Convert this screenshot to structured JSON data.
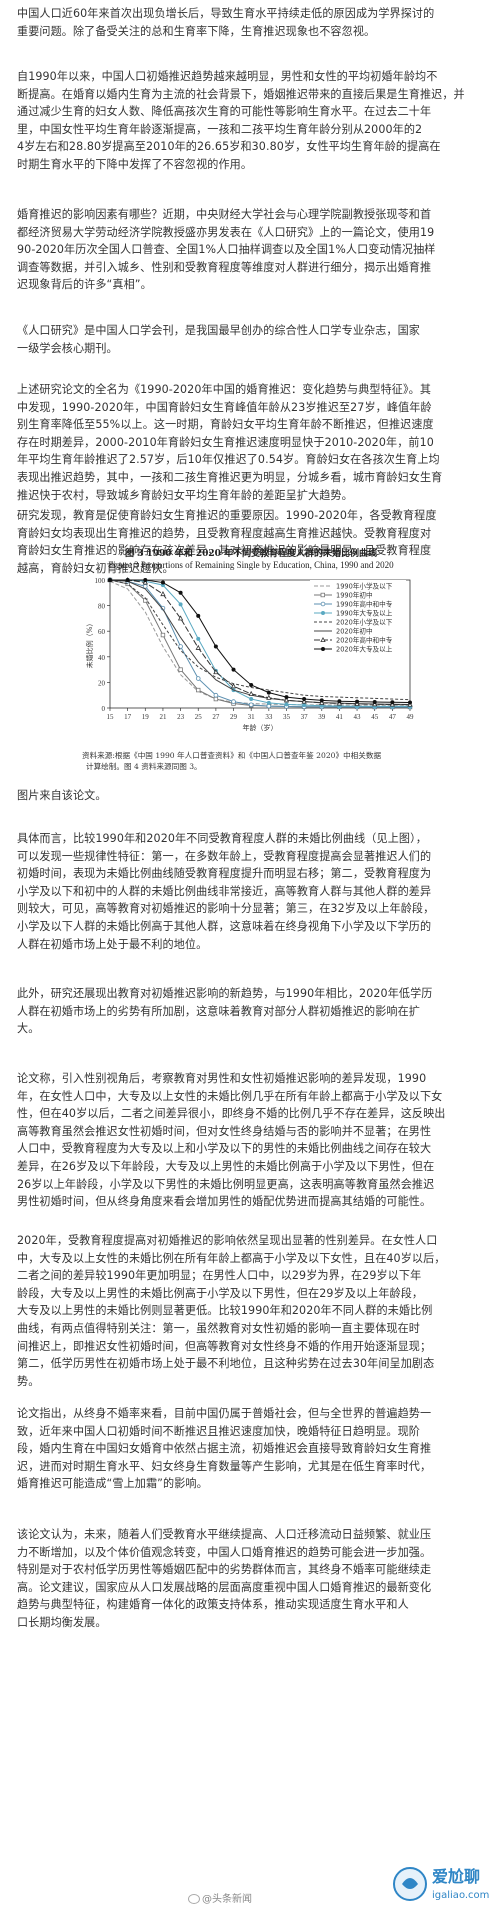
{
  "paragraphs": [
    {
      "lines": [
        "中国人口近60年来首次出现负增长后，导致生育水平持续走低的原因成为学界探讨的",
        "重要问题。除了备受关注的总和生育率下降，生育推迟现象也不容忽视。"
      ]
    },
    {
      "lines": [
        "自1990年以来，中国人口初婚推迟趋势越来越明显，男性和女性的平均初婚年龄均不",
        "断提高。在婚育以婚内生育为主流的社会背景下，婚姻推迟带来的直接后果是生育推迟，并",
        "通过减少生育的妇女人数、降低高孩次生育的可能性等影响生育水平。在过去二十年",
        "里，中国女性平均生育年龄逐渐提高，一孩和二孩平均生育年龄分别从2000年的2",
        "4岁左右和28.80岁提高至2010年的26.65岁和30.80岁，女性平均生育年龄的提高在",
        "时期生育水平的下降中发挥了不容忽视的作用。"
      ]
    },
    {
      "lines": [
        "婚育推迟的影响因素有哪些？近期，中央财经大学社会与心理学院副教授张现苓和首",
        "都经济贸易大学劳动经济学院教授盛亦男发表在《人口研究》上的一篇论文，使用19",
        "90-2020年历次全国人口普查、全国1%人口抽样调查以及全国1%人口变动情况抽样",
        "调查等数据，并引入城乡、性别和受教育程度等维度对人群进行细分，揭示出婚育推",
        "迟现象背后的许多“真相”。"
      ]
    },
    {
      "lines": [
        "《人口研究》是中国人口学会刊，是我国最早创办的综合性人口学专业杂志，国家",
        "一级学会核心期刊。"
      ]
    },
    {
      "lines": [
        "上述研究论文的全名为《1990-2020年中国的婚育推迟：变化趋势与典型特征》。其",
        "中发现，1990-2020年，中国育龄妇女生育峰值年龄从23岁推迟至27岁，峰值年龄",
        "别生育率降低至55%以上。这一时期，育龄妇女平均生育年龄不断推迟，但推迟速度",
        "存在时期差异，2000-2010年育龄妇女生育推迟速度明显快于2010-2020年，前10",
        "年平均生育年龄推迟了2.57岁，后10年仅推迟了0.54岁。育龄妇女在各孩次生育上均",
        "表现出推迟趋势，其中，一孩和二孩生育推迟更为明显，分城乡看，城市育龄妇女生育",
        "推迟快于农村，导致城乡育龄妇女平均生育年龄的差距呈扩大趋势。"
      ]
    },
    {
      "lines": [
        "研究发现，教育是促使育龄妇女生育推迟的重要原因。1990-2020年，各受教育程度",
        "育龄妇女均表现出生育推迟的趋势，且受教育程度越高生育推迟越快。受教育程度对",
        "育龄妇女生育推迟的影响存在孩次差异，其对初育推迟的影响最明显，且受教育程度",
        "越高，育龄妇女初育推迟越快。"
      ]
    },
    {
      "lines": [
        "图片来自该论文。"
      ]
    },
    {
      "lines": [
        "具体而言，比较1990年和2020年不同受教育程度人群的未婚比例曲线（见上图），",
        "可以发现一些规律性特征：第一，在多数年龄上，受教育程度提高会显著推迟人们的",
        "初婚时间，表现为未婚比例曲线随受教育程度提升而明显右移；第二，受教育程度为",
        "小学及以下和初中的人群的未婚比例曲线非常接近，高等教育人群与其他人群的差异",
        "则较大，可见，高等教育对初婚推迟的影响十分显著；第三，在32岁及以上年龄段，",
        "小学及以下人群的未婚比例高于其他人群，这意味着在终身视角下小学及以下学历的",
        "人群在初婚市场上处于最不利的地位。"
      ]
    },
    {
      "lines": [
        "此外，研究还展现出教育对初婚推迟影响的新趋势，与1990年相比，2020年低学历",
        "人群在初婚市场上的劣势有所加剧，这意味着教育对部分人群初婚推迟的影响在扩",
        "大。"
      ]
    },
    {
      "lines": [
        "论文称，引入性别视角后，考察教育对男性和女性初婚推迟影响的差异发现，1990",
        "年，在女性人口中，大专及以上女性的未婚比例几乎在所有年龄上都高于小学及以下女",
        "性，但在40岁以后，二者之间差异很小，即终身不婚的比例几乎不存在差异，这反映出",
        "高等教育虽然会推迟女性初婚时间，但对女性终身结婚与否的影响并不显著；在男性",
        "人口中，受教育程度为大专及以上和小学及以下的男性的未婚比例曲线之间存在较大",
        "差异，在26岁及以下年龄段，大专及以上男性的未婚比例高于小学及以下男性，但在",
        "26岁以上年龄段，小学及以下男性的未婚比例明显更高，这表明高等教育虽然会推迟",
        "男性初婚时间，但从终身角度来看会增加男性的婚配优势进而提高其结婚的可能性。"
      ]
    },
    {
      "lines": [
        "2020年，受教育程度提高对初婚推迟的影响依然呈现出显著的性别差异。在女性人口",
        "中，大专及以上女性的未婚比例在所有年龄上都高于小学及以下女性，且在40岁以后，",
        "二者之间的差异较1990年更加明显；在男性人口中，以29岁为界，在29岁以下年",
        "龄段，大专及以上男性的未婚比例高于小学及以下男性，但在29岁及以上年龄段，",
        "大专及以上男性的未婚比例则显著更低。比较1990年和2020年不同人群的未婚比例",
        "曲线，有两点值得特别关注：第一，虽然教育对女性初婚的影响一直主要体现在时",
        "间推迟上，即推迟女性初婚时间，但高等教育对女性终身不婚的作用开始逐渐显现；",
        "第二，低学历男性在初婚市场上处于最不利地位，且这种劣势在过去30年间呈加剧态",
        "势。"
      ]
    },
    {
      "lines": [
        "论文指出，从终身不婚率来看，目前中国仍属于普婚社会，但与全世界的普遍趋势一",
        "致，近年来中国人口初婚时间不断推迟且推迟速度加快，晚婚特征日趋明显。现阶",
        "段，婚内生育在中国妇女婚育中依然占据主流，初婚推迟会直接导致育龄妇女生育推",
        "迟，进而对时期生育水平、妇女终身生育数量等产生影响，尤其是在低生育率时代，",
        "婚育推迟可能造成“雪上加霜”的影响。"
      ]
    },
    {
      "lines": [
        "该论文认为，未来，随着人们受教育水平继续提高、人口迁移流动日益频繁、就业压",
        "力不断增加，以及个体价值观念转变，中国人口婚育推迟的趋势可能会进一步加强。",
        "特别是对于农村低学历男性等婚姻匹配中的劣势群体而言，其终身不婚率可能继续走",
        "高。论文建议，国家应从人口发展战略的层面高度重视中国人口婚育推迟的最新变化",
        "趋势与典型特征，构建婚育一体化的政策支持体系，推动实现适度生育水平和人",
        "口长期均衡发展。"
      ]
    }
  ],
  "figure": {
    "title_cn": "图 3   1990 年和 2020 年不同受教育程度人群的未婚比例曲线",
    "title_en": "Figure 3   Proportions of Remaining Single by Education, China, 1990 and 2020",
    "source_lines": [
      "资料来源:根据《中国 1990 年人口普查资料》和《中国人口普查年鉴 2020》中相关数据",
      "计算绘制。图 4 资料来源同图 3。"
    ]
  },
  "chart_data": {
    "type": "line",
    "title": "",
    "xlabel": "年龄（岁）",
    "ylabel": "未婚比例（%）",
    "xlim": [
      15,
      49
    ],
    "ylim": [
      0,
      100
    ],
    "x_ticks": [
      15,
      17,
      19,
      21,
      23,
      25,
      27,
      29,
      31,
      33,
      35,
      37,
      39,
      41,
      43,
      45,
      47,
      49
    ],
    "y_ticks": [
      0,
      20,
      40,
      60,
      80,
      100
    ],
    "legend_position": "top-right",
    "x": [
      15,
      17,
      19,
      21,
      23,
      25,
      27,
      29,
      31,
      33,
      35,
      37,
      39,
      41,
      43,
      45,
      47,
      49
    ],
    "series": [
      {
        "name": "1990年小学及以下",
        "color": "#9a9a9a",
        "dash": "4,2",
        "marker": "none",
        "values": [
          99,
          93,
          75,
          48,
          26,
          13,
          7,
          4.5,
          3.5,
          3,
          2.7,
          2.5,
          2.4,
          2.3,
          2.2,
          2.2,
          2.1,
          2.1
        ]
      },
      {
        "name": "1990年初中",
        "color": "#777777",
        "dash": "",
        "marker": "open-square",
        "values": [
          100,
          97,
          84,
          57,
          30,
          14,
          7,
          3.5,
          2,
          1.5,
          1.2,
          1,
          1,
          0.9,
          0.9,
          0.8,
          0.8,
          0.8
        ]
      },
      {
        "name": "1990年高中和中专",
        "color": "#5b8fb0",
        "dash": "",
        "marker": "open-circle",
        "values": [
          100,
          99,
          95,
          78,
          48,
          23,
          10,
          5,
          2.5,
          1.5,
          1.2,
          1,
          0.9,
          0.9,
          0.8,
          0.8,
          0.8,
          0.8
        ]
      },
      {
        "name": "1990年大专及以上",
        "color": "#5aa9c2",
        "dash": "",
        "marker": "filled-circle",
        "values": [
          100,
          100,
          99,
          96,
          81,
          54,
          29,
          14,
          7,
          4,
          2.8,
          2.2,
          1.8,
          1.5,
          1.4,
          1.3,
          1.3,
          1.3
        ]
      },
      {
        "name": "2020年小学及以下",
        "color": "#444444",
        "dash": "3,2",
        "marker": "none",
        "values": [
          100,
          97,
          86,
          65,
          45,
          32,
          24,
          19,
          16,
          14,
          12,
          10,
          9,
          8.5,
          8,
          7.5,
          7,
          6.5
        ]
      },
      {
        "name": "2020年初中",
        "color": "#444444",
        "dash": "",
        "marker": "none",
        "values": [
          100,
          99,
          93,
          77,
          55,
          36,
          22,
          14,
          10,
          7.5,
          6,
          5,
          4.2,
          3.8,
          3.4,
          3.1,
          2.9,
          2.7
        ]
      },
      {
        "name": "2020年高中和中专",
        "color": "#333333",
        "dash": "6,2",
        "marker": "open-triangle",
        "values": [
          100,
          100,
          98,
          89,
          70,
          47,
          28,
          17,
          11,
          8,
          6,
          5,
          4,
          3.5,
          3.2,
          2.9,
          2.7,
          2.6
        ]
      },
      {
        "name": "2020年大专及以上",
        "color": "#111111",
        "dash": "",
        "marker": "filled-circle",
        "values": [
          100,
          100,
          100,
          98,
          90,
          72,
          48,
          30,
          18,
          12,
          8.5,
          7,
          6,
          5.3,
          5,
          4.7,
          4.5,
          4.3
        ]
      }
    ]
  },
  "footer": {
    "weibo_account": "@头条新闻",
    "watermark_text": "爱尬聊",
    "watermark_url": "igaliao.com"
  }
}
